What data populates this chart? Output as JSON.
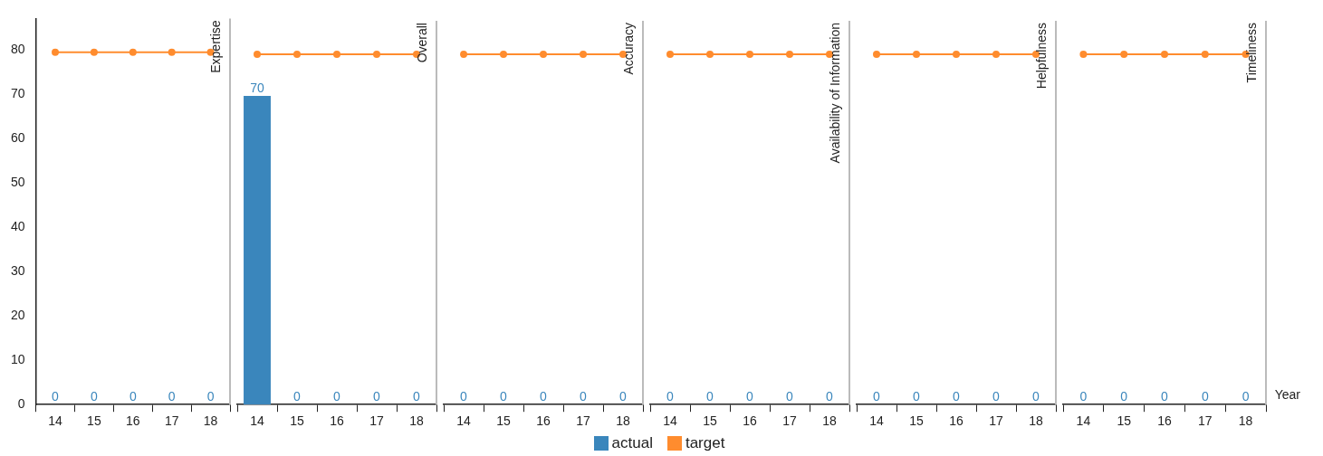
{
  "chart_data": [
    {
      "type": "bar",
      "title": "Expertise",
      "categories": [
        "14",
        "15",
        "16",
        "17",
        "18"
      ],
      "ylim": [
        0,
        87
      ],
      "yticks": [
        0,
        10,
        20,
        30,
        40,
        50,
        60,
        70,
        80
      ],
      "grid": false,
      "legend": "bottom",
      "marker": "circle",
      "series": [
        {
          "name": "actual",
          "color": "#3a86bc",
          "values": [
            0,
            0,
            0,
            0,
            0
          ],
          "value_labels": [
            "0",
            "0",
            "0",
            "0",
            "0"
          ]
        },
        {
          "name": "target",
          "type": "line",
          "color": "#ff8c2e",
          "values": [
            79.4,
            79.4,
            79.4,
            79.4,
            79.4
          ]
        }
      ]
    },
    {
      "type": "bar",
      "title": "Overall",
      "categories": [
        "14",
        "15",
        "16",
        "17",
        "18"
      ],
      "ylim": [
        0,
        87
      ],
      "tick_labels": "x",
      "grid": false,
      "marker": "circle",
      "series": [
        {
          "color": "#3a86bc",
          "values": [
            70,
            0,
            0,
            0,
            0
          ],
          "value_labels": [
            "70",
            "0",
            "0",
            "0",
            "0"
          ]
        },
        {
          "type": "line",
          "color": "#ff8c2e",
          "values": [
            79.4,
            79.4,
            79.4,
            79.4,
            79.4
          ]
        }
      ]
    },
    {
      "type": "bar",
      "title": "Accuracy",
      "categories": [
        "14",
        "15",
        "16",
        "17",
        "18"
      ],
      "ylim": [
        0,
        87
      ],
      "tick_labels": "x",
      "grid": false,
      "marker": "circle",
      "series": [
        {
          "color": "#3a86bc",
          "values": [
            0,
            0,
            0,
            0,
            0
          ],
          "value_labels": [
            "0",
            "0",
            "0",
            "0",
            "0"
          ]
        },
        {
          "type": "line",
          "color": "#ff8c2e",
          "values": [
            79.4,
            79.4,
            79.4,
            79.4,
            79.4
          ]
        }
      ]
    },
    {
      "type": "bar",
      "title": "Availability of Information",
      "categories": [
        "14",
        "15",
        "16",
        "17",
        "18"
      ],
      "ylim": [
        0,
        87
      ],
      "tick_labels": "x",
      "grid": false,
      "marker": "circle",
      "series": [
        {
          "color": "#3a86bc",
          "values": [
            0,
            0,
            0,
            0,
            0
          ],
          "value_labels": [
            "0",
            "0",
            "0",
            "0",
            "0"
          ]
        },
        {
          "type": "line",
          "color": "#ff8c2e",
          "values": [
            79.4,
            79.4,
            79.4,
            79.4,
            79.4
          ]
        }
      ]
    },
    {
      "type": "bar",
      "title": "Helpfulness",
      "categories": [
        "14",
        "15",
        "16",
        "17",
        "18"
      ],
      "ylim": [
        0,
        87
      ],
      "tick_labels": "x",
      "grid": false,
      "marker": "circle",
      "series": [
        {
          "color": "#3a86bc",
          "values": [
            0,
            0,
            0,
            0,
            0
          ],
          "value_labels": [
            "0",
            "0",
            "0",
            "0",
            "0"
          ]
        },
        {
          "type": "line",
          "color": "#ff8c2e",
          "values": [
            79.4,
            79.4,
            79.4,
            79.4,
            79.4
          ]
        }
      ]
    },
    {
      "type": "bar",
      "title": "Timeliness",
      "xlabel": "Year",
      "categories": [
        "14",
        "15",
        "16",
        "17",
        "18"
      ],
      "ylim": [
        0,
        87
      ],
      "tick_labels": "x",
      "grid": false,
      "marker": "circle",
      "series": [
        {
          "color": "#3a86bc",
          "values": [
            0,
            0,
            0,
            0,
            0
          ],
          "value_labels": [
            "0",
            "0",
            "0",
            "0",
            "0"
          ]
        },
        {
          "type": "line",
          "color": "#ff8c2e",
          "values": [
            79.4,
            79.4,
            79.4,
            79.4,
            79.4
          ]
        }
      ]
    }
  ]
}
